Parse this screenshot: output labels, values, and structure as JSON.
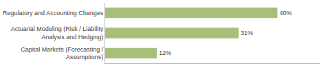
{
  "chart_data": {
    "type": "bar",
    "orientation": "horizontal",
    "categories": [
      "Capital Markets (Forecasting /\nAssumptions)",
      "Actuarial Modeling (Risk / Liability\nAnalysis and Hedging)",
      "Regulatory and Accounting Changes"
    ],
    "values": [
      12,
      31,
      40
    ],
    "value_labels": [
      "12%",
      "31%",
      "40%"
    ],
    "color": "#a8bf7a",
    "xlim": [
      0,
      50
    ],
    "grid": false,
    "data_labels": true,
    "tick_labels": "y"
  }
}
